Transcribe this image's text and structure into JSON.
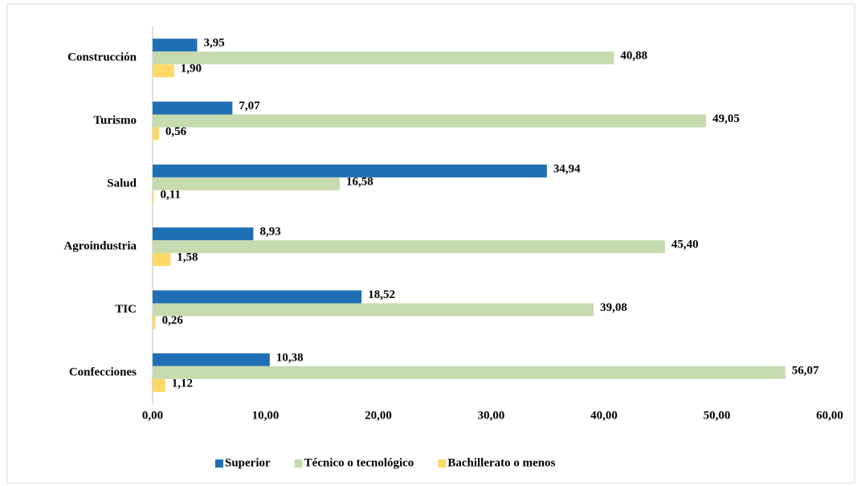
{
  "chart_data": {
    "type": "hbar",
    "categories": [
      "Construcción",
      "Turismo",
      "Salud",
      "Agroindustria",
      "TIC",
      "Confecciones"
    ],
    "series": [
      {
        "name": "Superior",
        "color": "#1f6fb5",
        "values": [
          3.95,
          7.07,
          34.94,
          8.93,
          18.52,
          10.38
        ],
        "value_labels": [
          "3,95",
          "7,07",
          "34,94",
          "8,93",
          "18,52",
          "10,38"
        ]
      },
      {
        "name": "Técnico o tecnológico",
        "color": "#c6dbb0",
        "values": [
          40.88,
          49.05,
          16.58,
          45.4,
          39.08,
          56.07
        ],
        "value_labels": [
          "40,88",
          "49,05",
          "16,58",
          "45,40",
          "39,08",
          "56,07"
        ]
      },
      {
        "name": "Bachillerato o menos",
        "color": "#ffd966",
        "values": [
          1.9,
          0.56,
          0.11,
          1.58,
          0.26,
          1.12
        ],
        "value_labels": [
          "1,90",
          "0,56",
          "0,11",
          "1,58",
          "0,26",
          "1,12"
        ]
      }
    ],
    "xlim": [
      0,
      60
    ],
    "xticks": [
      {
        "value": 0,
        "label": "0,00"
      },
      {
        "value": 10,
        "label": "10,00"
      },
      {
        "value": 20,
        "label": "20,00"
      },
      {
        "value": 30,
        "label": "30,00"
      },
      {
        "value": 40,
        "label": "40,00"
      },
      {
        "value": 50,
        "label": "50,00"
      },
      {
        "value": 60,
        "label": "60,00"
      }
    ],
    "grid": false,
    "legend": "bottom"
  }
}
